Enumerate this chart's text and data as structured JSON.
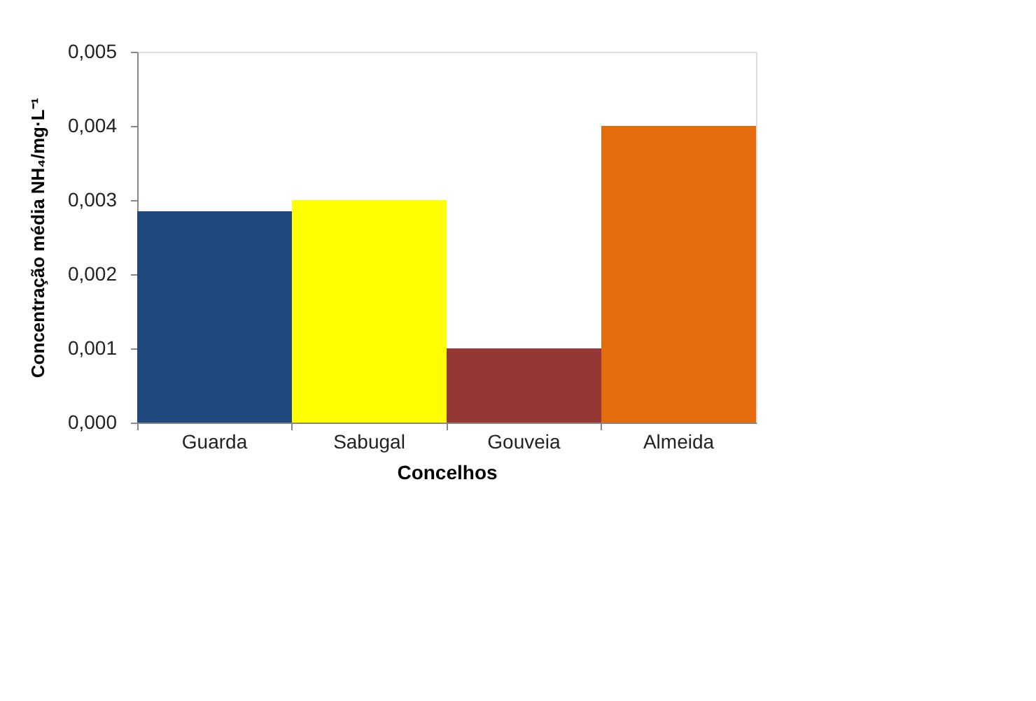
{
  "chart_data": {
    "type": "bar",
    "xlabel": "Concelhos",
    "ylabel": "Concentração média NH₄/mg·L⁻¹",
    "categories": [
      "Guarda",
      "Sabugal",
      "Gouveia",
      "Almeida"
    ],
    "values": [
      0.00285,
      0.003,
      0.001,
      0.004
    ],
    "colors": [
      "#1f497d",
      "#ffff00",
      "#953735",
      "#e46c0a"
    ],
    "ylim": [
      0,
      0.005
    ],
    "yticks": [
      {
        "value": 0,
        "label": "0,000"
      },
      {
        "value": 0.001,
        "label": "0,001"
      },
      {
        "value": 0.002,
        "label": "0,002"
      },
      {
        "value": 0.003,
        "label": "0,003"
      },
      {
        "value": 0.004,
        "label": "0,004"
      },
      {
        "value": 0.005,
        "label": "0,005"
      }
    ],
    "grid": false
  }
}
